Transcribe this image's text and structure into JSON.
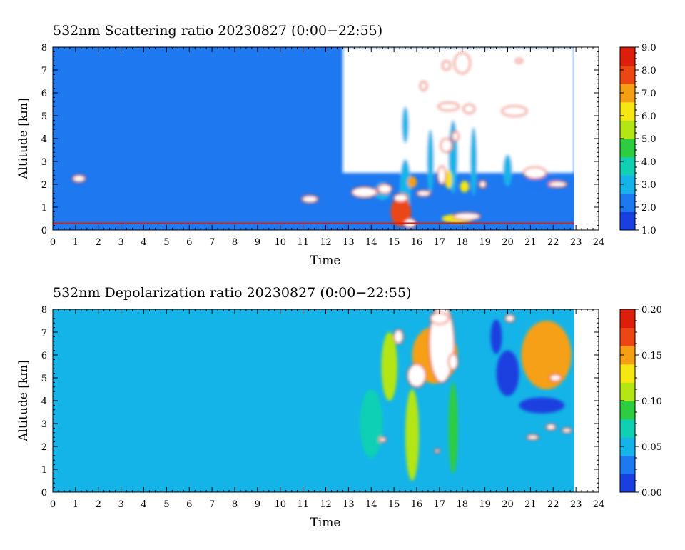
{
  "colors": {
    "colormap": [
      "#1a3fe0",
      "#1e78f0",
      "#14b4e8",
      "#10d0b4",
      "#2ecc40",
      "#b4e614",
      "#f5e614",
      "#f5a014",
      "#eb4614",
      "#dc1e0a"
    ],
    "over_range": "#ffffff",
    "background": "#ffffff",
    "axis": "#000000"
  },
  "chart_data": [
    {
      "type": "heatmap",
      "title": "532nm Scattering ratio  20230827 (0:00−22:55)",
      "xlabel": "Time",
      "ylabel": "Altitude [km]",
      "xlim": [
        0,
        24
      ],
      "ylim": [
        0,
        8
      ],
      "x_ticks": [
        "0",
        "1",
        "2",
        "3",
        "4",
        "5",
        "6",
        "7",
        "8",
        "9",
        "10",
        "11",
        "12",
        "13",
        "14",
        "15",
        "16",
        "17",
        "18",
        "19",
        "20",
        "21",
        "22",
        "23",
        "24"
      ],
      "y_ticks": [
        "0",
        "1",
        "2",
        "3",
        "4",
        "5",
        "6",
        "7",
        "8"
      ],
      "data_extent_x": [
        0,
        22.92
      ],
      "colorbar": {
        "range": [
          1.0,
          9.0
        ],
        "ticks": [
          "1.0",
          "2.0",
          "3.0",
          "4.0",
          "5.0",
          "6.0",
          "7.0",
          "8.0",
          "9.0"
        ]
      },
      "background_value": 1.8,
      "features": [
        {
          "kind": "gap",
          "x": [
            12.75,
            22.92
          ],
          "y": [
            2.5,
            8.0
          ]
        },
        {
          "kind": "cell",
          "x": 14.5,
          "y": 1.7,
          "w": 0.7,
          "h": 0.8,
          "v": 3.2
        },
        {
          "kind": "cell",
          "x": 15.5,
          "y": 1.8,
          "w": 0.5,
          "h": 2.6,
          "v": 3.0
        },
        {
          "kind": "cell",
          "x": 15.5,
          "y": 4.6,
          "w": 0.3,
          "h": 1.6,
          "v": 2.6
        },
        {
          "kind": "cell",
          "x": 16.6,
          "y": 3.0,
          "w": 0.3,
          "h": 2.8,
          "v": 2.6
        },
        {
          "kind": "cell",
          "x": 17.6,
          "y": 3.2,
          "w": 0.4,
          "h": 3.2,
          "v": 3.0
        },
        {
          "kind": "cell",
          "x": 18.5,
          "y": 3.0,
          "w": 0.3,
          "h": 3.0,
          "v": 2.6
        },
        {
          "kind": "cell",
          "x": 20.0,
          "y": 2.6,
          "w": 0.4,
          "h": 1.4,
          "v": 2.6
        },
        {
          "kind": "cell",
          "x": 21.6,
          "y": 2.1,
          "w": 1.5,
          "h": 0.6,
          "v": 2.4
        },
        {
          "kind": "cell",
          "x": 15.3,
          "y": 0.8,
          "w": 0.9,
          "h": 1.3,
          "v": 7.5
        },
        {
          "kind": "cell",
          "x": 15.8,
          "y": 2.1,
          "w": 0.4,
          "h": 0.5,
          "v": 6.8
        },
        {
          "kind": "cell",
          "x": 17.4,
          "y": 2.2,
          "w": 0.3,
          "h": 0.8,
          "v": 6.5
        },
        {
          "kind": "cell",
          "x": 17.8,
          "y": 0.5,
          "w": 1.4,
          "h": 0.4,
          "v": 6.0
        },
        {
          "kind": "cell",
          "x": 18.1,
          "y": 1.9,
          "w": 0.4,
          "h": 0.5,
          "v": 6.0
        },
        {
          "kind": "cell",
          "x": 1.15,
          "y": 2.25,
          "w": 0.55,
          "h": 0.3,
          "v": 9.5
        },
        {
          "kind": "cell",
          "x": 11.3,
          "y": 1.35,
          "w": 0.7,
          "h": 0.3,
          "v": 9.5
        },
        {
          "kind": "cell",
          "x": 13.7,
          "y": 1.65,
          "w": 1.1,
          "h": 0.45,
          "v": 9.5
        },
        {
          "kind": "cell",
          "x": 14.6,
          "y": 1.8,
          "w": 0.6,
          "h": 0.4,
          "v": 9.5
        },
        {
          "kind": "cell",
          "x": 15.3,
          "y": 1.4,
          "w": 0.6,
          "h": 0.35,
          "v": 9.5
        },
        {
          "kind": "cell",
          "x": 15.7,
          "y": 0.3,
          "w": 0.5,
          "h": 0.4,
          "v": 9.5
        },
        {
          "kind": "cell",
          "x": 18.2,
          "y": 0.6,
          "w": 1.2,
          "h": 0.3,
          "v": 9.5
        },
        {
          "kind": "cell",
          "x": 16.3,
          "y": 1.6,
          "w": 0.6,
          "h": 0.25,
          "v": 9.5
        },
        {
          "kind": "cell",
          "x": 17.1,
          "y": 2.4,
          "w": 0.35,
          "h": 0.8,
          "v": 9.5
        },
        {
          "kind": "cell",
          "x": 17.3,
          "y": 3.7,
          "w": 0.5,
          "h": 0.6,
          "v": 9.5
        },
        {
          "kind": "cell",
          "x": 17.7,
          "y": 4.1,
          "w": 0.3,
          "h": 0.4,
          "v": 9.5
        },
        {
          "kind": "cell",
          "x": 17.4,
          "y": 5.4,
          "w": 0.9,
          "h": 0.35,
          "v": 9.5
        },
        {
          "kind": "cell",
          "x": 18.3,
          "y": 5.3,
          "w": 0.5,
          "h": 0.4,
          "v": 9.5
        },
        {
          "kind": "cell",
          "x": 20.3,
          "y": 5.2,
          "w": 1.1,
          "h": 0.45,
          "v": 9.5
        },
        {
          "kind": "cell",
          "x": 17.3,
          "y": 7.2,
          "w": 0.35,
          "h": 0.4,
          "v": 9.5
        },
        {
          "kind": "cell",
          "x": 16.3,
          "y": 6.3,
          "w": 0.3,
          "h": 0.4,
          "v": 9.5
        },
        {
          "kind": "cell",
          "x": 18.0,
          "y": 7.3,
          "w": 0.7,
          "h": 0.9,
          "v": 9.5
        },
        {
          "kind": "cell",
          "x": 20.5,
          "y": 7.4,
          "w": 0.3,
          "h": 0.2,
          "v": 9.5
        },
        {
          "kind": "cell",
          "x": 21.2,
          "y": 2.5,
          "w": 1.0,
          "h": 0.5,
          "v": 9.5
        },
        {
          "kind": "cell",
          "x": 22.2,
          "y": 2.0,
          "w": 0.8,
          "h": 0.25,
          "v": 9.5
        },
        {
          "kind": "cell",
          "x": 18.9,
          "y": 2.0,
          "w": 0.3,
          "h": 0.3,
          "v": 9.5
        }
      ]
    },
    {
      "type": "heatmap",
      "title": "532nm Depolarization ratio  20230827 (0:00−22:55)",
      "xlabel": "Time",
      "ylabel": "Altitude [km]",
      "xlim": [
        0,
        24
      ],
      "ylim": [
        0,
        8
      ],
      "x_ticks": [
        "0",
        "1",
        "2",
        "3",
        "4",
        "5",
        "6",
        "7",
        "8",
        "9",
        "10",
        "11",
        "12",
        "13",
        "14",
        "15",
        "16",
        "17",
        "18",
        "19",
        "20",
        "21",
        "22",
        "23",
        "24"
      ],
      "y_ticks": [
        "0",
        "1",
        "2",
        "3",
        "4",
        "5",
        "6",
        "7",
        "8"
      ],
      "data_extent_x": [
        0,
        22.92
      ],
      "colorbar": {
        "range": [
          0.0,
          0.2
        ],
        "ticks": [
          "0.00",
          "0.05",
          "0.10",
          "0.15",
          "0.20"
        ]
      },
      "background_value": 0.045,
      "features": [
        {
          "kind": "cell",
          "x": 15.8,
          "y": 2.5,
          "w": 0.6,
          "h": 4.0,
          "v": 0.1
        },
        {
          "kind": "cell",
          "x": 17.6,
          "y": 2.8,
          "w": 0.4,
          "h": 4.0,
          "v": 0.095
        },
        {
          "kind": "cell",
          "x": 14.8,
          "y": 5.5,
          "w": 0.7,
          "h": 3.0,
          "v": 0.1
        },
        {
          "kind": "cell",
          "x": 16.8,
          "y": 6.0,
          "w": 2.0,
          "h": 2.5,
          "v": 0.16
        },
        {
          "kind": "cell",
          "x": 21.7,
          "y": 6.0,
          "w": 2.2,
          "h": 3.0,
          "v": 0.14
        },
        {
          "kind": "cell",
          "x": 20.0,
          "y": 5.2,
          "w": 1.0,
          "h": 2.0,
          "v": 0.0
        },
        {
          "kind": "cell",
          "x": 21.5,
          "y": 3.8,
          "w": 2.0,
          "h": 0.7,
          "v": 0.02
        },
        {
          "kind": "cell",
          "x": 14.0,
          "y": 3.0,
          "w": 1.0,
          "h": 3.0,
          "v": 0.065
        },
        {
          "kind": "cell",
          "x": 19.5,
          "y": 6.8,
          "w": 0.5,
          "h": 1.5,
          "v": 0.015
        },
        {
          "kind": "cell",
          "x": 17.1,
          "y": 6.5,
          "w": 1.1,
          "h": 3.4,
          "v": 0.25
        },
        {
          "kind": "cell",
          "x": 16.0,
          "y": 5.1,
          "w": 0.8,
          "h": 1.0,
          "v": 0.25
        },
        {
          "kind": "cell",
          "x": 17.6,
          "y": 5.7,
          "w": 0.4,
          "h": 0.7,
          "v": 0.25
        },
        {
          "kind": "cell",
          "x": 15.2,
          "y": 6.8,
          "w": 0.4,
          "h": 0.6,
          "v": 0.25
        },
        {
          "kind": "cell",
          "x": 17.0,
          "y": 7.6,
          "w": 0.8,
          "h": 0.5,
          "v": 0.25
        },
        {
          "kind": "cell",
          "x": 20.1,
          "y": 7.6,
          "w": 0.4,
          "h": 0.3,
          "v": 0.25
        },
        {
          "kind": "cell",
          "x": 22.1,
          "y": 5.0,
          "w": 0.5,
          "h": 0.3,
          "v": 0.25
        },
        {
          "kind": "cell",
          "x": 21.9,
          "y": 2.85,
          "w": 0.4,
          "h": 0.25,
          "v": 0.25
        },
        {
          "kind": "cell",
          "x": 22.6,
          "y": 2.7,
          "w": 0.4,
          "h": 0.2,
          "v": 0.25
        },
        {
          "kind": "cell",
          "x": 21.1,
          "y": 2.4,
          "w": 0.5,
          "h": 0.2,
          "v": 0.25
        },
        {
          "kind": "cell",
          "x": 14.5,
          "y": 2.3,
          "w": 0.3,
          "h": 0.2,
          "v": 0.25
        },
        {
          "kind": "cell",
          "x": 16.9,
          "y": 1.8,
          "w": 0.2,
          "h": 0.15,
          "v": 0.25
        }
      ]
    }
  ]
}
